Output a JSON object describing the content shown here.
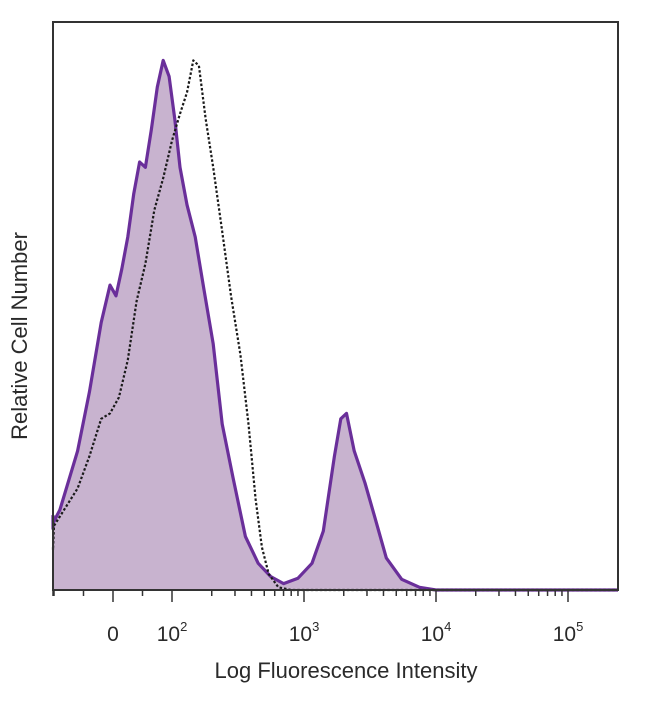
{
  "chart_data": {
    "type": "area",
    "xlabel": "Log Fluorescence Intensity",
    "ylabel": "Relative Cell Number",
    "x_scale": "biexponential",
    "xlim": [
      -180,
      300000
    ],
    "ylim": [
      0,
      100
    ],
    "grid": false,
    "x_ticks": [
      {
        "value": 0,
        "base": "0",
        "exp": ""
      },
      {
        "value": 100,
        "base": "10",
        "exp": "2"
      },
      {
        "value": 1000,
        "base": "10",
        "exp": "3"
      },
      {
        "value": 10000,
        "base": "10",
        "exp": "4"
      },
      {
        "value": 100000,
        "base": "10",
        "exp": "5"
      }
    ],
    "series": [
      {
        "style": "filled-solid",
        "fill_color": "#c8b3cf",
        "line_color": "#6a2f9a",
        "points": [
          [
            -180,
            14
          ],
          [
            -150,
            11.5
          ],
          [
            -120,
            12.5
          ],
          [
            -90,
            15
          ],
          [
            -60,
            26
          ],
          [
            -40,
            37
          ],
          [
            -20,
            50
          ],
          [
            -5,
            57
          ],
          [
            5,
            55
          ],
          [
            15,
            60
          ],
          [
            25,
            66
          ],
          [
            35,
            74
          ],
          [
            45,
            80
          ],
          [
            55,
            79
          ],
          [
            65,
            86
          ],
          [
            75,
            94
          ],
          [
            85,
            99
          ],
          [
            95,
            96
          ],
          [
            105,
            88
          ],
          [
            115,
            79
          ],
          [
            130,
            72
          ],
          [
            150,
            66
          ],
          [
            175,
            56
          ],
          [
            205,
            46
          ],
          [
            240,
            31
          ],
          [
            290,
            21
          ],
          [
            360,
            10
          ],
          [
            450,
            5
          ],
          [
            560,
            2.5
          ],
          [
            700,
            1.2
          ],
          [
            900,
            2.2
          ],
          [
            1150,
            5
          ],
          [
            1400,
            11
          ],
          [
            1700,
            25
          ],
          [
            1900,
            32
          ],
          [
            2100,
            33
          ],
          [
            2400,
            26
          ],
          [
            2900,
            20
          ],
          [
            3400,
            14
          ],
          [
            4200,
            6
          ],
          [
            5500,
            2
          ],
          [
            7500,
            0.5
          ],
          [
            10000,
            0
          ],
          [
            300000,
            0
          ]
        ]
      },
      {
        "style": "dotted-outline",
        "line_color": "#1a1a1a",
        "points": [
          [
            -180,
            8
          ],
          [
            -140,
            7.5
          ],
          [
            -100,
            12
          ],
          [
            -60,
            19
          ],
          [
            -40,
            25
          ],
          [
            -20,
            32
          ],
          [
            -5,
            33
          ],
          [
            10,
            36
          ],
          [
            25,
            43
          ],
          [
            40,
            54
          ],
          [
            55,
            61
          ],
          [
            70,
            71
          ],
          [
            85,
            77
          ],
          [
            100,
            84
          ],
          [
            115,
            89
          ],
          [
            130,
            93
          ],
          [
            145,
            99
          ],
          [
            160,
            98
          ],
          [
            180,
            88
          ],
          [
            205,
            79
          ],
          [
            240,
            67
          ],
          [
            280,
            55
          ],
          [
            330,
            44
          ],
          [
            380,
            31
          ],
          [
            430,
            17
          ],
          [
            480,
            8
          ],
          [
            540,
            3
          ],
          [
            640,
            0.5
          ],
          [
            800,
            0
          ],
          [
            300000,
            0
          ]
        ]
      }
    ]
  }
}
